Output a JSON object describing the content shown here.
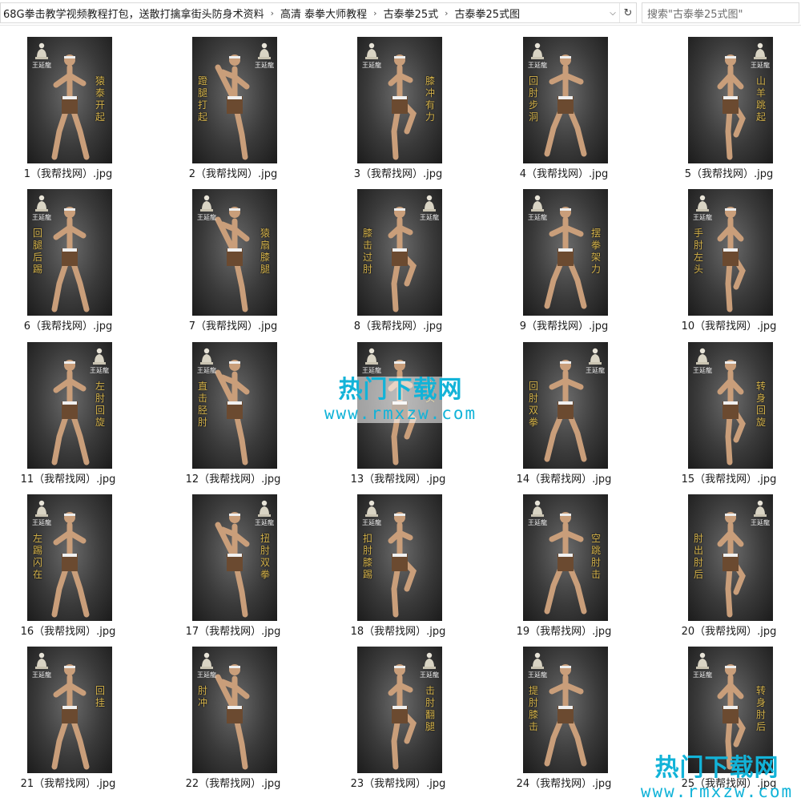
{
  "breadcrumb": {
    "items": [
      "68G拳击教学视频教程打包，送散打擒拿街头防身术资料",
      "高清 泰拳大师教程",
      "古泰拳25式",
      "古泰拳25式图"
    ]
  },
  "search": {
    "placeholder": "搜索\"古泰拳25式图\""
  },
  "thumbnail": {
    "brand": "王延龍"
  },
  "files": [
    {
      "name": "1（我帮找网）.jpg",
      "calli": "猿泰开起"
    },
    {
      "name": "2（我帮找网）.jpg",
      "calli": "蹬腿打起"
    },
    {
      "name": "3（我帮找网）.jpg",
      "calli": "膝冲有力"
    },
    {
      "name": "4（我帮找网）.jpg",
      "calli": "回肘步洞"
    },
    {
      "name": "5（我帮找网）.jpg",
      "calli": "山羊跳起"
    },
    {
      "name": "6（我帮找网）.jpg",
      "calli": "回腿后踢"
    },
    {
      "name": "7（我帮找网）.jpg",
      "calli": "猿扇膝腿"
    },
    {
      "name": "8（我帮找网）.jpg",
      "calli": "膝击过肘"
    },
    {
      "name": "9（我帮找网）.jpg",
      "calli": "摆拳架力"
    },
    {
      "name": "10（我帮找网）.jpg",
      "calli": "手肘左头"
    },
    {
      "name": "11（我帮找网）.jpg",
      "calli": "左肘回旋"
    },
    {
      "name": "12（我帮找网）.jpg",
      "calli": "直击胫肘"
    },
    {
      "name": "13（我帮找网）.jpg",
      "calli": "横头"
    },
    {
      "name": "14（我帮找网）.jpg",
      "calli": "回肘双拳"
    },
    {
      "name": "15（我帮找网）.jpg",
      "calli": "转身回旋"
    },
    {
      "name": "16（我帮找网）.jpg",
      "calli": "左踢闪在"
    },
    {
      "name": "17（我帮找网）.jpg",
      "calli": "扭肘双拳"
    },
    {
      "name": "18（我帮找网）.jpg",
      "calli": "扣肘膝踢"
    },
    {
      "name": "19（我帮找网）.jpg",
      "calli": "空跳肘击"
    },
    {
      "name": "20（我帮找网）.jpg",
      "calli": "肘出肘后"
    },
    {
      "name": "21（我帮找网）.jpg",
      "calli": "回挂"
    },
    {
      "name": "22（我帮找网）.jpg",
      "calli": "肘冲"
    },
    {
      "name": "23（我帮找网）.jpg",
      "calli": "击肘翻腿"
    },
    {
      "name": "24（我帮找网）.jpg",
      "calli": "提肘膝击"
    },
    {
      "name": "25（我帮找网）.jpg",
      "calli": "转身肘后"
    }
  ],
  "watermark": {
    "title": "热门下载网",
    "url": "www.rmxzw.com"
  }
}
